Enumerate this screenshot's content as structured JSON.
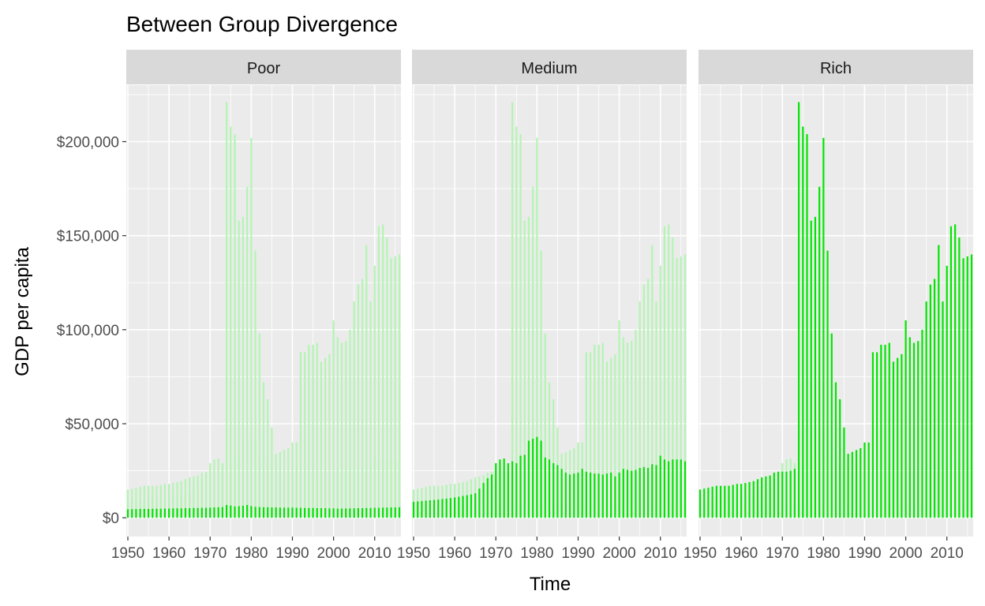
{
  "chart_data": {
    "type": "bar",
    "title": "Between Group Divergence",
    "xlabel": "Time",
    "ylabel": "GDP per capita",
    "facets": [
      "Poor",
      "Medium",
      "Rich"
    ],
    "xlim": [
      1950,
      2016
    ],
    "ylim": [
      -10000,
      230000
    ],
    "x_ticks": [
      1950,
      1960,
      1970,
      1980,
      1990,
      2000,
      2010
    ],
    "x_tick_labels": [
      "1950",
      "1960",
      "1970",
      "1980",
      "1990",
      "2000",
      "2010"
    ],
    "y_ticks": [
      0,
      50000,
      100000,
      150000,
      200000
    ],
    "y_tick_labels": [
      "$0",
      "$50,000",
      "$100,000",
      "$150,000",
      "$200,000"
    ],
    "grid": true,
    "legend": "none",
    "colors": {
      "highlight": "#00e600",
      "faded": "#b3f5b3",
      "panel": "#ebebeb",
      "strip": "#d9d9d9",
      "grid": "#ffffff"
    },
    "x": [
      1950,
      1951,
      1952,
      1953,
      1954,
      1955,
      1956,
      1957,
      1958,
      1959,
      1960,
      1961,
      1962,
      1963,
      1964,
      1965,
      1966,
      1967,
      1968,
      1969,
      1970,
      1971,
      1972,
      1973,
      1974,
      1975,
      1976,
      1977,
      1978,
      1979,
      1980,
      1981,
      1982,
      1983,
      1984,
      1985,
      1986,
      1987,
      1988,
      1989,
      1990,
      1991,
      1992,
      1993,
      1994,
      1995,
      1996,
      1997,
      1998,
      1999,
      2000,
      2001,
      2002,
      2003,
      2004,
      2005,
      2006,
      2007,
      2008,
      2009,
      2010,
      2011,
      2012,
      2013,
      2014,
      2015,
      2016
    ],
    "series": [
      {
        "name": "Poor",
        "values": [
          4500,
          4600,
          4600,
          4700,
          4700,
          4700,
          4800,
          4800,
          4800,
          4900,
          4900,
          5000,
          5000,
          5000,
          5100,
          5100,
          5200,
          5200,
          5300,
          5300,
          5400,
          5500,
          5600,
          5700,
          6800,
          6500,
          6000,
          6200,
          6400,
          6800,
          6200,
          5800,
          5700,
          5600,
          5600,
          5500,
          5500,
          5400,
          5400,
          5400,
          5400,
          5300,
          5300,
          5200,
          5200,
          5200,
          5100,
          5100,
          5100,
          5000,
          5000,
          4900,
          4900,
          4900,
          5000,
          5000,
          5100,
          5100,
          5200,
          5200,
          5300,
          5300,
          5400,
          5400,
          5500,
          5500,
          5600
        ]
      },
      {
        "name": "Medium",
        "values": [
          8500,
          8700,
          8900,
          9100,
          9300,
          9500,
          9700,
          10000,
          10200,
          10500,
          10800,
          11200,
          11600,
          12000,
          12400,
          13000,
          15500,
          18500,
          21000,
          23000,
          29000,
          31000,
          31500,
          29000,
          30000,
          29000,
          33000,
          33500,
          41000,
          42000,
          43000,
          41000,
          32000,
          31000,
          29000,
          28000,
          26000,
          24000,
          23000,
          23500,
          24000,
          26000,
          24500,
          24000,
          23500,
          23500,
          23000,
          23500,
          24000,
          22000,
          24000,
          26000,
          25500,
          25000,
          25500,
          26500,
          27000,
          26500,
          28500,
          28000,
          33000,
          31000,
          30000,
          31000,
          31000,
          31000,
          30000
        ]
      },
      {
        "name": "Rich",
        "values": [
          15000,
          15500,
          16000,
          16500,
          17000,
          17000,
          17000,
          17000,
          17500,
          18000,
          18000,
          18500,
          19000,
          19500,
          20500,
          21500,
          22000,
          22500,
          24000,
          24500,
          24500,
          24500,
          25000,
          26000,
          221000,
          208000,
          204000,
          158000,
          160000,
          176000,
          202000,
          142000,
          98000,
          72000,
          63000,
          48000,
          34000,
          35000,
          36000,
          37000,
          40000,
          40000,
          88000,
          88000,
          92000,
          92000,
          93000,
          83000,
          85000,
          87000,
          105000,
          96000,
          93000,
          94000,
          100000,
          115000,
          124000,
          127000,
          145000,
          115000,
          134000,
          155000,
          156000,
          149000,
          138000,
          139000,
          140000
        ]
      }
    ]
  }
}
